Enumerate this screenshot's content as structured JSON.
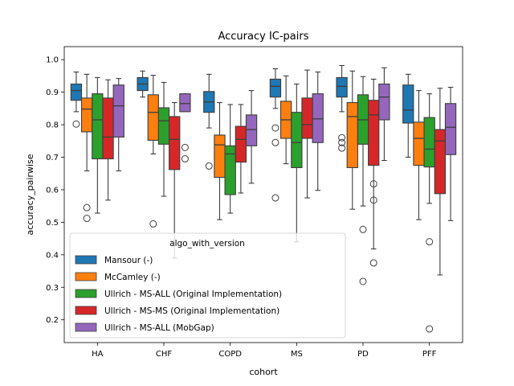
{
  "chart_data": {
    "type": "box",
    "title": "Accuracy IC-pairs",
    "xlabel": "cohort",
    "ylabel": "accuracy_pairwise",
    "ylim": [
      0.13,
      1.04
    ],
    "yticks": [
      0.2,
      0.3,
      0.4,
      0.5,
      0.6,
      0.7,
      0.8,
      0.9,
      1.0
    ],
    "ytick_labels": [
      "0.2",
      "0.3",
      "0.4",
      "0.5",
      "0.6",
      "0.7",
      "0.8",
      "0.9",
      "1.0"
    ],
    "categories": [
      "HA",
      "CHF",
      "COPD",
      "MS",
      "PD",
      "PFF"
    ],
    "legend": {
      "title": "algo_with_version",
      "placement": "lower-left"
    },
    "series": [
      {
        "name": "Mansour (-)",
        "color": "#1f77b4",
        "boxes": [
          {
            "whislo": 0.84,
            "q1": 0.875,
            "med": 0.905,
            "q3": 0.925,
            "whishi": 0.962,
            "fliers": [
              0.802
            ]
          },
          {
            "whislo": 0.885,
            "q1": 0.905,
            "med": 0.925,
            "q3": 0.945,
            "whishi": 0.965,
            "fliers": []
          },
          {
            "whislo": 0.79,
            "q1": 0.838,
            "med": 0.87,
            "q3": 0.902,
            "whishi": 0.955,
            "fliers": [
              0.673
            ]
          },
          {
            "whislo": 0.85,
            "q1": 0.885,
            "med": 0.918,
            "q3": 0.94,
            "whishi": 0.972,
            "fliers": [
              0.79,
              0.745,
              0.575
            ]
          },
          {
            "whislo": 0.84,
            "q1": 0.885,
            "med": 0.918,
            "q3": 0.945,
            "whishi": 0.982,
            "fliers": [
              0.76,
              0.745,
              0.728
            ]
          },
          {
            "whislo": 0.7,
            "q1": 0.805,
            "med": 0.845,
            "q3": 0.922,
            "whishi": 0.955,
            "fliers": []
          }
        ]
      },
      {
        "name": "McCamley (-)",
        "color": "#ff7f0e",
        "boxes": [
          {
            "whislo": 0.658,
            "q1": 0.778,
            "med": 0.848,
            "q3": 0.882,
            "whishi": 0.955,
            "fliers": [
              0.545,
              0.512
            ]
          },
          {
            "whislo": 0.71,
            "q1": 0.752,
            "med": 0.838,
            "q3": 0.892,
            "whishi": 0.952,
            "fliers": [
              0.495
            ]
          },
          {
            "whislo": 0.508,
            "q1": 0.638,
            "med": 0.738,
            "q3": 0.768,
            "whishi": 0.868,
            "fliers": []
          },
          {
            "whislo": 0.68,
            "q1": 0.758,
            "med": 0.815,
            "q3": 0.872,
            "whishi": 0.95,
            "fliers": []
          },
          {
            "whislo": 0.54,
            "q1": 0.668,
            "med": 0.825,
            "q3": 0.868,
            "whishi": 0.965,
            "fliers": []
          },
          {
            "whislo": 0.508,
            "q1": 0.675,
            "med": 0.758,
            "q3": 0.808,
            "whishi": 0.905,
            "fliers": []
          }
        ]
      },
      {
        "name": "Ullrich - MS-ALL (Original Implementation)",
        "color": "#2ca02c",
        "boxes": [
          {
            "whislo": 0.528,
            "q1": 0.695,
            "med": 0.815,
            "q3": 0.895,
            "whishi": 0.945,
            "fliers": []
          },
          {
            "whislo": 0.58,
            "q1": 0.74,
            "med": 0.812,
            "q3": 0.852,
            "whishi": 0.93,
            "fliers": []
          },
          {
            "whislo": 0.528,
            "q1": 0.585,
            "med": 0.71,
            "q3": 0.735,
            "whishi": 0.862,
            "fliers": []
          },
          {
            "whislo": 0.44,
            "q1": 0.668,
            "med": 0.745,
            "q3": 0.838,
            "whishi": 0.925,
            "fliers": []
          },
          {
            "whislo": 0.55,
            "q1": 0.74,
            "med": 0.815,
            "q3": 0.892,
            "whishi": 0.948,
            "fliers": [
              0.478,
              0.318
            ]
          },
          {
            "whislo": 0.558,
            "q1": 0.67,
            "med": 0.725,
            "q3": 0.822,
            "whishi": 0.895,
            "fliers": [
              0.44,
              0.172
            ]
          }
        ]
      },
      {
        "name": "Ullrich - MS-MS (Original Implementation)",
        "color": "#d62728",
        "boxes": [
          {
            "whislo": 0.568,
            "q1": 0.695,
            "med": 0.762,
            "q3": 0.882,
            "whishi": 0.938,
            "fliers": []
          },
          {
            "whislo": 0.39,
            "q1": 0.662,
            "med": 0.755,
            "q3": 0.825,
            "whishi": 0.868,
            "fliers": []
          },
          {
            "whislo": 0.59,
            "q1": 0.685,
            "med": 0.755,
            "q3": 0.795,
            "whishi": 0.862,
            "fliers": []
          },
          {
            "whislo": 0.575,
            "q1": 0.758,
            "med": 0.8,
            "q3": 0.882,
            "whishi": 0.968,
            "fliers": []
          },
          {
            "whislo": 0.418,
            "q1": 0.675,
            "med": 0.83,
            "q3": 0.875,
            "whishi": 0.94,
            "fliers": [
              0.618,
              0.568,
              0.375
            ]
          },
          {
            "whislo": 0.338,
            "q1": 0.588,
            "med": 0.75,
            "q3": 0.785,
            "whishi": 0.912,
            "fliers": []
          }
        ]
      },
      {
        "name": "Ullrich - MS-ALL (MobGap)",
        "color": "#9467bd",
        "boxes": [
          {
            "whislo": 0.658,
            "q1": 0.762,
            "med": 0.858,
            "q3": 0.922,
            "whishi": 0.942,
            "fliers": []
          },
          {
            "whislo": 0.84,
            "q1": 0.84,
            "med": 0.865,
            "q3": 0.895,
            "whishi": 0.895,
            "fliers": [
              0.73,
              0.695
            ]
          },
          {
            "whislo": 0.62,
            "q1": 0.735,
            "med": 0.785,
            "q3": 0.83,
            "whishi": 0.905,
            "fliers": []
          },
          {
            "whislo": 0.598,
            "q1": 0.745,
            "med": 0.818,
            "q3": 0.895,
            "whishi": 0.962,
            "fliers": []
          },
          {
            "whislo": 0.69,
            "q1": 0.815,
            "med": 0.885,
            "q3": 0.925,
            "whishi": 0.975,
            "fliers": []
          },
          {
            "whislo": 0.505,
            "q1": 0.708,
            "med": 0.792,
            "q3": 0.865,
            "whishi": 0.915,
            "fliers": []
          }
        ]
      }
    ]
  }
}
